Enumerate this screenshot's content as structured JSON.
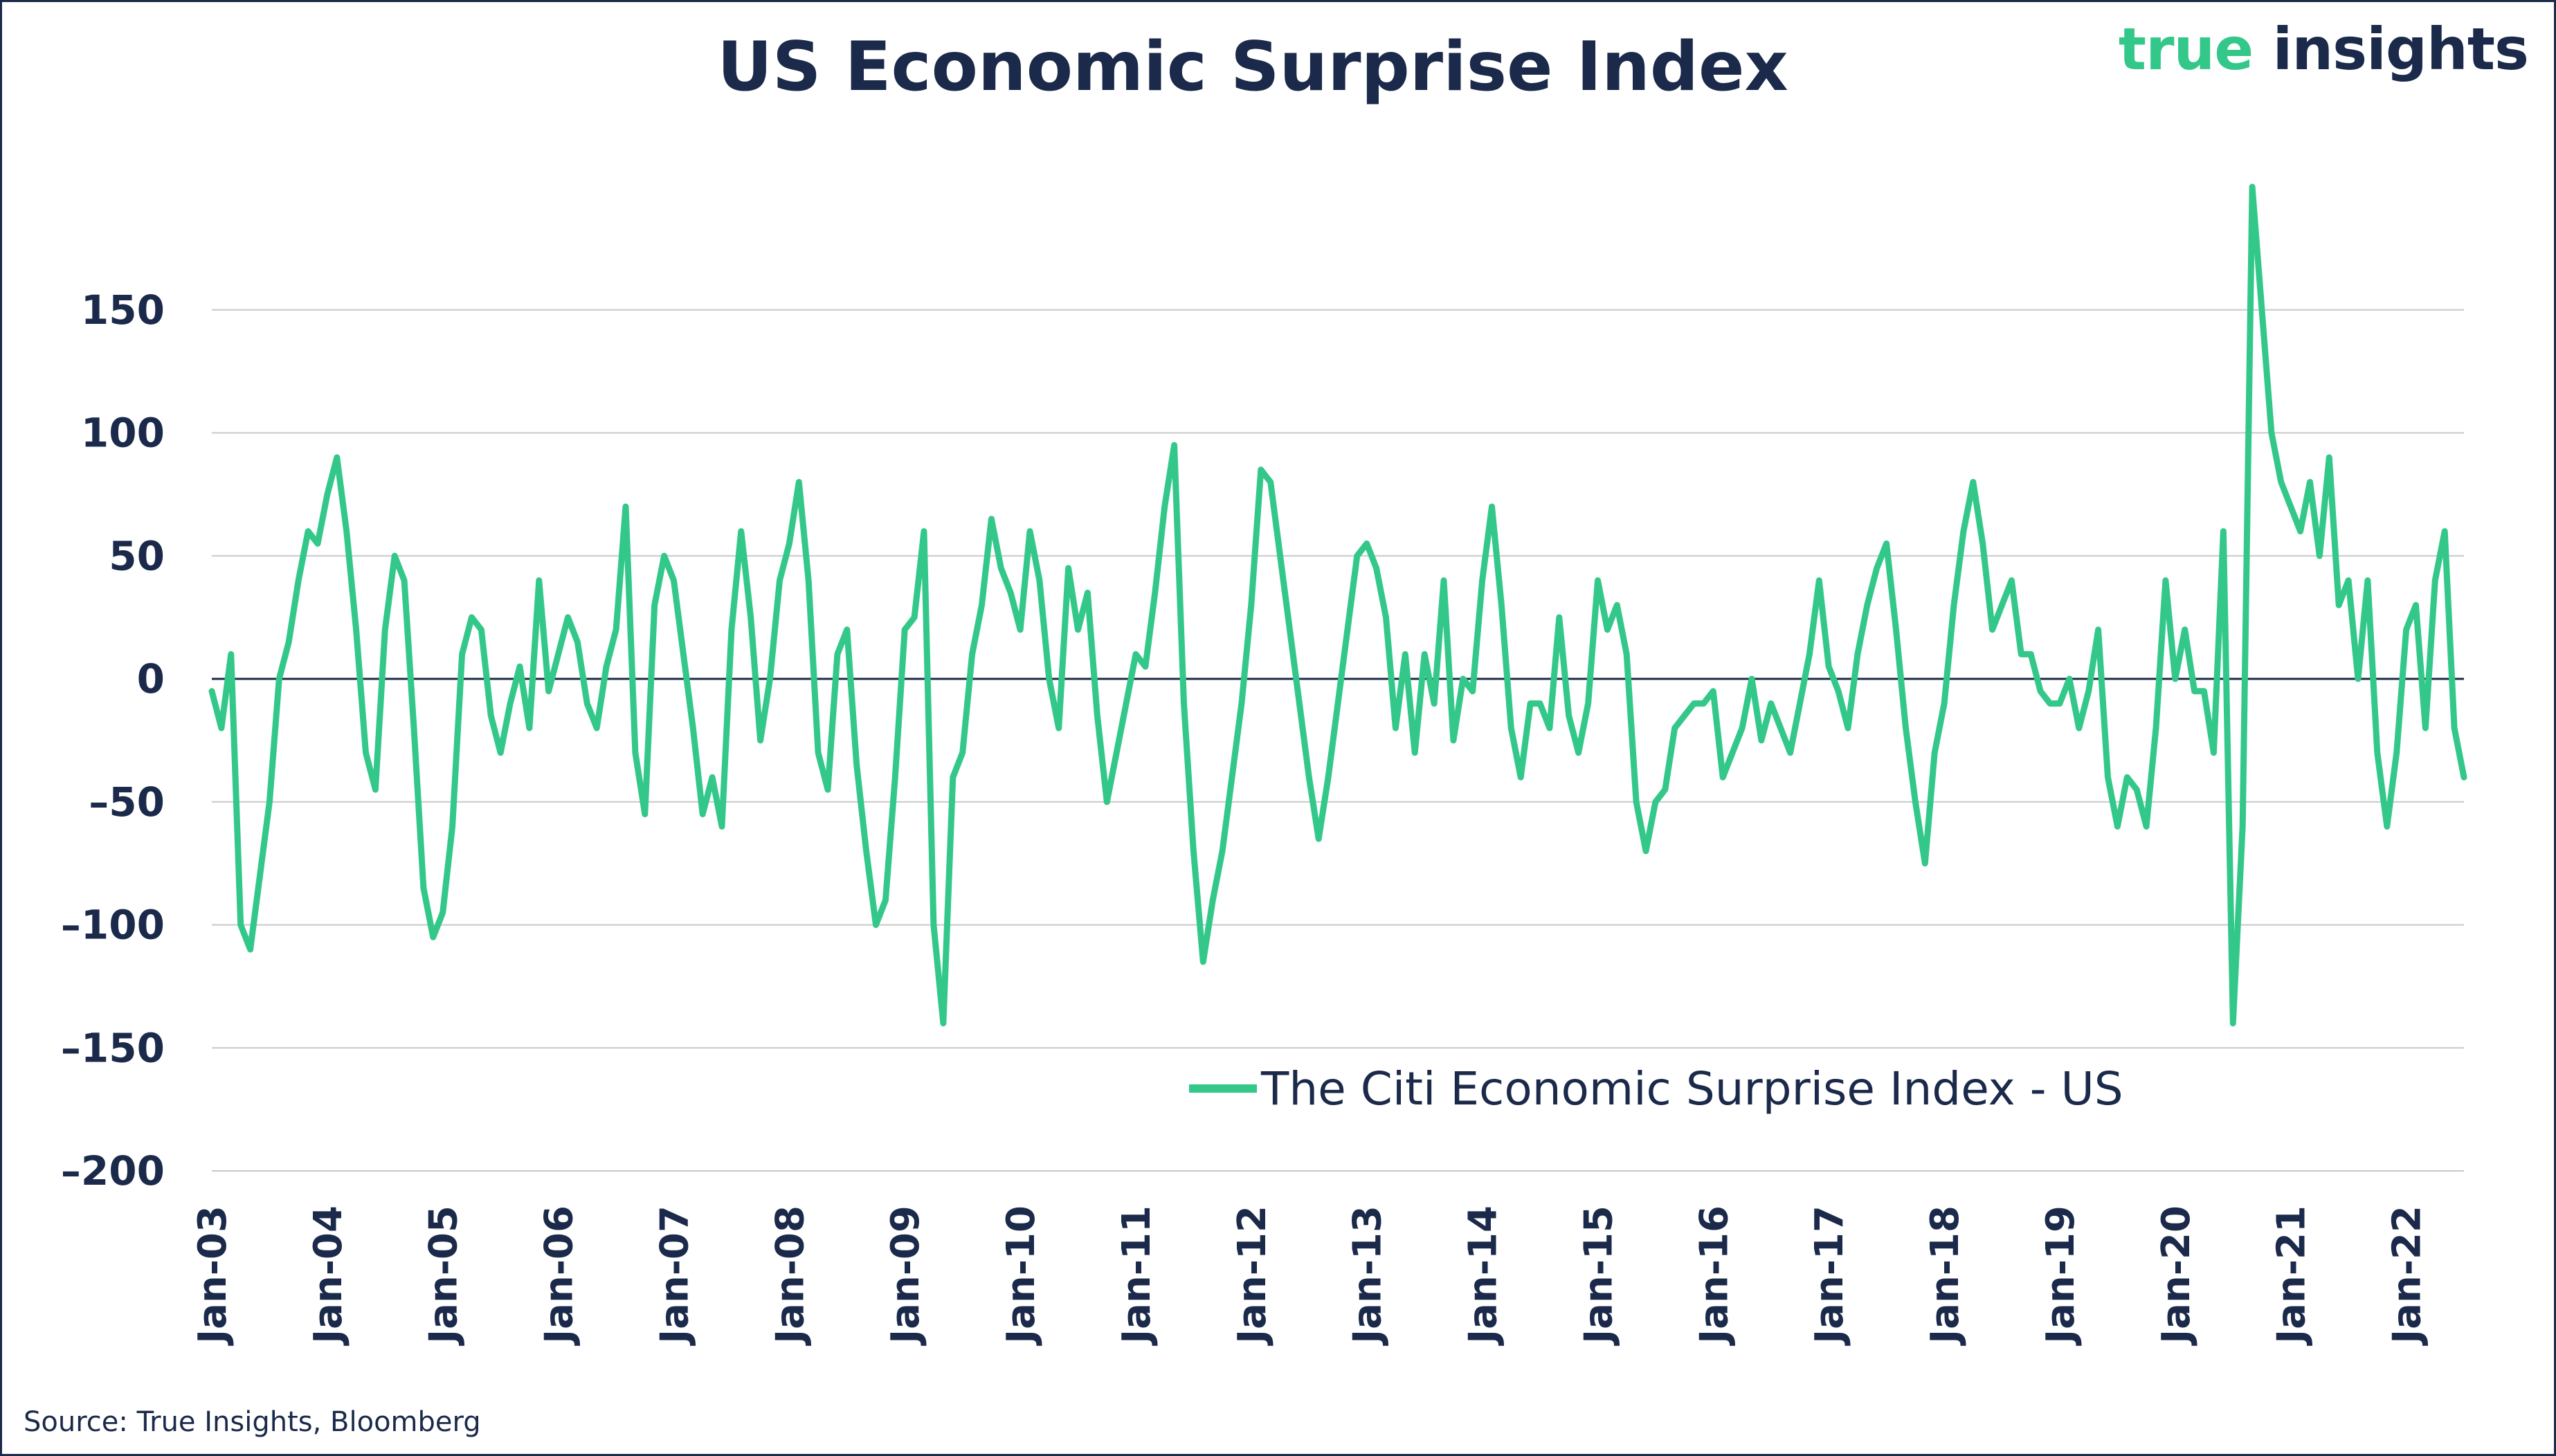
{
  "header": {
    "title": "US Economic Surprise Index",
    "logo_word1": "true",
    "logo_word2": "insights"
  },
  "footer": {
    "source": "Source: True Insights, Bloomberg"
  },
  "colors": {
    "series": "#33c88a",
    "text": "#1b2a4a",
    "grid": "#c8c8c8",
    "zero_line": "#1b2a4a"
  },
  "chart_data": {
    "type": "line",
    "title": "US Economic Surprise Index",
    "xlabel": "",
    "ylabel": "",
    "ylim": [
      -200,
      200
    ],
    "yticks": [
      150,
      100,
      50,
      0,
      -50,
      -100,
      -150,
      -200
    ],
    "ytick_labels": [
      "150",
      "100",
      "50",
      "0",
      "–50",
      "–100",
      "–150",
      "–200"
    ],
    "xlim": [
      "2003-01",
      "2022-07"
    ],
    "xticks": [
      "Jan-03",
      "Jan-04",
      "Jan-05",
      "Jan-06",
      "Jan-07",
      "Jan-08",
      "Jan-09",
      "Jan-10",
      "Jan-11",
      "Jan-12",
      "Jan-13",
      "Jan-14",
      "Jan-15",
      "Jan-16",
      "Jan-17",
      "Jan-18",
      "Jan-19",
      "Jan-20",
      "Jan-21",
      "Jan-22"
    ],
    "grid": "horizontal",
    "legend_position": "bottom-right",
    "series": [
      {
        "name": "The Citi Economic Surprise Index - US",
        "x": [
          "2003-01",
          "2003-02",
          "2003-03",
          "2003-04",
          "2003-05",
          "2003-06",
          "2003-07",
          "2003-08",
          "2003-09",
          "2003-10",
          "2003-11",
          "2003-12",
          "2004-01",
          "2004-02",
          "2004-03",
          "2004-04",
          "2004-05",
          "2004-06",
          "2004-07",
          "2004-08",
          "2004-09",
          "2004-10",
          "2004-11",
          "2004-12",
          "2005-01",
          "2005-02",
          "2005-03",
          "2005-04",
          "2005-05",
          "2005-06",
          "2005-07",
          "2005-08",
          "2005-09",
          "2005-10",
          "2005-11",
          "2005-12",
          "2006-01",
          "2006-02",
          "2006-03",
          "2006-04",
          "2006-05",
          "2006-06",
          "2006-07",
          "2006-08",
          "2006-09",
          "2006-10",
          "2006-11",
          "2006-12",
          "2007-01",
          "2007-02",
          "2007-03",
          "2007-04",
          "2007-05",
          "2007-06",
          "2007-07",
          "2007-08",
          "2007-09",
          "2007-10",
          "2007-11",
          "2007-12",
          "2008-01",
          "2008-02",
          "2008-03",
          "2008-04",
          "2008-05",
          "2008-06",
          "2008-07",
          "2008-08",
          "2008-09",
          "2008-10",
          "2008-11",
          "2008-12",
          "2009-01",
          "2009-02",
          "2009-03",
          "2009-04",
          "2009-05",
          "2009-06",
          "2009-07",
          "2009-08",
          "2009-09",
          "2009-10",
          "2009-11",
          "2009-12",
          "2010-01",
          "2010-02",
          "2010-03",
          "2010-04",
          "2010-05",
          "2010-06",
          "2010-07",
          "2010-08",
          "2010-09",
          "2010-10",
          "2010-11",
          "2010-12",
          "2011-01",
          "2011-02",
          "2011-03",
          "2011-04",
          "2011-05",
          "2011-06",
          "2011-07",
          "2011-08",
          "2011-09",
          "2011-10",
          "2011-11",
          "2011-12",
          "2012-01",
          "2012-02",
          "2012-03",
          "2012-04",
          "2012-05",
          "2012-06",
          "2012-07",
          "2012-08",
          "2012-09",
          "2012-10",
          "2012-11",
          "2012-12",
          "2013-01",
          "2013-02",
          "2013-03",
          "2013-04",
          "2013-05",
          "2013-06",
          "2013-07",
          "2013-08",
          "2013-09",
          "2013-10",
          "2013-11",
          "2013-12",
          "2014-01",
          "2014-02",
          "2014-03",
          "2014-04",
          "2014-05",
          "2014-06",
          "2014-07",
          "2014-08",
          "2014-09",
          "2014-10",
          "2014-11",
          "2014-12",
          "2015-01",
          "2015-02",
          "2015-03",
          "2015-04",
          "2015-05",
          "2015-06",
          "2015-07",
          "2015-08",
          "2015-09",
          "2015-10",
          "2015-11",
          "2015-12",
          "2016-01",
          "2016-02",
          "2016-03",
          "2016-04",
          "2016-05",
          "2016-06",
          "2016-07",
          "2016-08",
          "2016-09",
          "2016-10",
          "2016-11",
          "2016-12",
          "2017-01",
          "2017-02",
          "2017-03",
          "2017-04",
          "2017-05",
          "2017-06",
          "2017-07",
          "2017-08",
          "2017-09",
          "2017-10",
          "2017-11",
          "2017-12",
          "2018-01",
          "2018-02",
          "2018-03",
          "2018-04",
          "2018-05",
          "2018-06",
          "2018-07",
          "2018-08",
          "2018-09",
          "2018-10",
          "2018-11",
          "2018-12",
          "2019-01",
          "2019-02",
          "2019-03",
          "2019-04",
          "2019-05",
          "2019-06",
          "2019-07",
          "2019-08",
          "2019-09",
          "2019-10",
          "2019-11",
          "2019-12",
          "2020-01",
          "2020-02",
          "2020-03",
          "2020-04",
          "2020-05",
          "2020-06",
          "2020-07",
          "2020-08",
          "2020-09",
          "2020-10",
          "2020-11",
          "2020-12",
          "2021-01",
          "2021-02",
          "2021-03",
          "2021-04",
          "2021-05",
          "2021-06",
          "2021-07",
          "2021-08",
          "2021-09",
          "2021-10",
          "2021-11",
          "2021-12",
          "2022-01",
          "2022-02",
          "2022-03",
          "2022-04",
          "2022-05",
          "2022-06",
          "2022-07"
        ],
        "values": [
          -5,
          -20,
          10,
          -100,
          -110,
          -80,
          -50,
          0,
          15,
          40,
          60,
          55,
          75,
          90,
          60,
          20,
          -30,
          -45,
          20,
          50,
          40,
          -20,
          -85,
          -105,
          -95,
          -60,
          10,
          25,
          20,
          -15,
          -30,
          -10,
          5,
          -20,
          40,
          -5,
          10,
          25,
          15,
          -10,
          -20,
          5,
          20,
          70,
          -30,
          -55,
          30,
          50,
          40,
          10,
          -20,
          -55,
          -40,
          -60,
          20,
          60,
          25,
          -25,
          0,
          40,
          55,
          80,
          40,
          -30,
          -45,
          10,
          20,
          -35,
          -70,
          -100,
          -90,
          -40,
          20,
          25,
          60,
          -100,
          -140,
          -40,
          -30,
          10,
          30,
          65,
          45,
          35,
          20,
          60,
          40,
          0,
          -20,
          45,
          20,
          35,
          -15,
          -50,
          -30,
          -10,
          10,
          5,
          35,
          70,
          95,
          -10,
          -70,
          -115,
          -90,
          -70,
          -40,
          -10,
          30,
          85,
          80,
          50,
          20,
          -10,
          -40,
          -65,
          -40,
          -10,
          20,
          50,
          55,
          45,
          25,
          -20,
          10,
          -30,
          10,
          -10,
          40,
          -25,
          0,
          -5,
          40,
          70,
          30,
          -20,
          -40,
          -10,
          -10,
          -20,
          25,
          -15,
          -30,
          -10,
          40,
          20,
          30,
          10,
          -50,
          -70,
          -50,
          -45,
          -20,
          -15,
          -10,
          -10,
          -5,
          -40,
          -30,
          -20,
          0,
          -25,
          -10,
          -20,
          -30,
          -10,
          10,
          40,
          5,
          -5,
          -20,
          10,
          30,
          45,
          55,
          20,
          -20,
          -50,
          -75,
          -30,
          -10,
          30,
          60,
          80,
          55,
          20,
          30,
          40,
          10,
          10,
          -5,
          -10,
          -10,
          0,
          -20,
          -5,
          20,
          -40,
          -60,
          -40,
          -45,
          -60,
          -20,
          40,
          0,
          20,
          -5,
          -5,
          -30,
          60,
          -140,
          -60,
          200,
          150,
          100,
          80,
          70,
          60,
          80,
          50,
          90,
          30,
          40,
          0,
          40,
          -30,
          -60,
          -30,
          20,
          30,
          -20,
          40,
          60,
          -20,
          -40
        ]
      }
    ]
  }
}
